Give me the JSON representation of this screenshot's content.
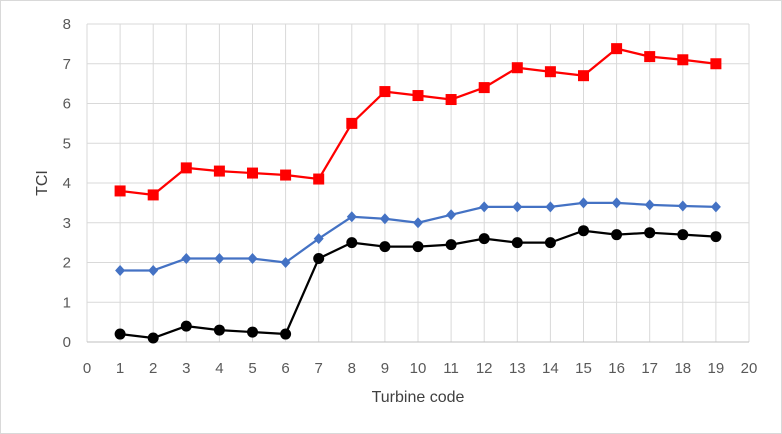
{
  "chart_data": {
    "type": "line",
    "title": "",
    "xlabel": "Turbine code",
    "ylabel": "TCI",
    "xlim": [
      0,
      20
    ],
    "ylim": [
      0,
      8
    ],
    "xticks": [
      0,
      1,
      2,
      3,
      4,
      5,
      6,
      7,
      8,
      9,
      10,
      11,
      12,
      13,
      14,
      15,
      16,
      17,
      18,
      19,
      20
    ],
    "yticks": [
      0,
      1,
      2,
      3,
      4,
      5,
      6,
      7,
      8
    ],
    "grid": true,
    "legend": "none",
    "x": [
      1,
      2,
      3,
      4,
      5,
      6,
      7,
      8,
      9,
      10,
      11,
      12,
      13,
      14,
      15,
      16,
      17,
      18,
      19
    ],
    "series": [
      {
        "name": "red-squares",
        "color": "#ff0000",
        "marker": "square",
        "values": [
          3.8,
          3.7,
          4.38,
          4.3,
          4.25,
          4.2,
          4.1,
          5.5,
          6.3,
          6.2,
          6.1,
          6.4,
          6.9,
          6.8,
          6.7,
          7.38,
          7.18,
          7.1,
          7.0
        ]
      },
      {
        "name": "blue-diamonds",
        "color": "#4472c4",
        "marker": "diamond",
        "values": [
          1.8,
          1.8,
          2.1,
          2.1,
          2.1,
          2.0,
          2.6,
          3.15,
          3.1,
          3.0,
          3.2,
          3.4,
          3.4,
          3.4,
          3.5,
          3.5,
          3.45,
          3.42,
          3.4
        ]
      },
      {
        "name": "black-circles",
        "color": "#000000",
        "marker": "circle",
        "values": [
          0.2,
          0.1,
          0.4,
          0.3,
          0.25,
          0.2,
          2.1,
          2.5,
          2.4,
          2.4,
          2.45,
          2.6,
          2.5,
          2.5,
          2.8,
          2.7,
          2.75,
          2.7,
          2.65
        ]
      }
    ]
  }
}
